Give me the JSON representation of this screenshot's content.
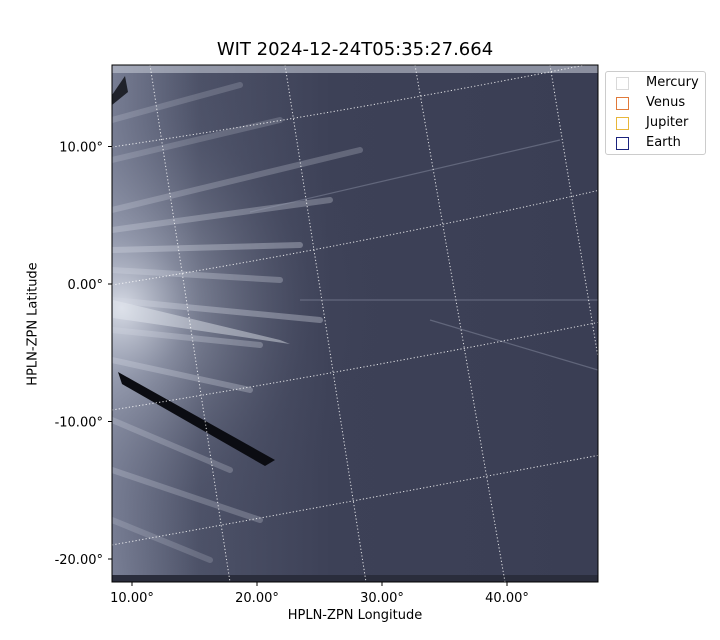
{
  "chart_data": {
    "type": "heatmap",
    "title": "WIT 2024-12-24T05:35:27.664",
    "xlabel": "HPLN-ZPN Longitude",
    "ylabel": "HPLN-ZPN Latitude",
    "x_ticks": [
      {
        "value": 10,
        "label": "10.00°"
      },
      {
        "value": 20,
        "label": "20.00°"
      },
      {
        "value": 30,
        "label": "30.00°"
      },
      {
        "value": 40,
        "label": "40.00°"
      }
    ],
    "y_ticks": [
      {
        "value": 10,
        "label": "10.00°"
      },
      {
        "value": 0,
        "label": "0.00°"
      },
      {
        "value": -10,
        "label": "-10.00°"
      },
      {
        "value": -20,
        "label": "-20.00°"
      }
    ],
    "xlim": [
      8.5,
      47
    ],
    "ylim": [
      -21.5,
      16
    ],
    "grid": true,
    "colormap": "bone",
    "legend": {
      "placement": "outside-upper-right",
      "items": [
        {
          "label": "Mercury",
          "color": "#d9d9d9"
        },
        {
          "label": "Venus",
          "color": "#e07a3a"
        },
        {
          "label": "Jupiter",
          "color": "#e8b63a"
        },
        {
          "label": "Earth",
          "color": "#1a237e"
        }
      ]
    }
  }
}
